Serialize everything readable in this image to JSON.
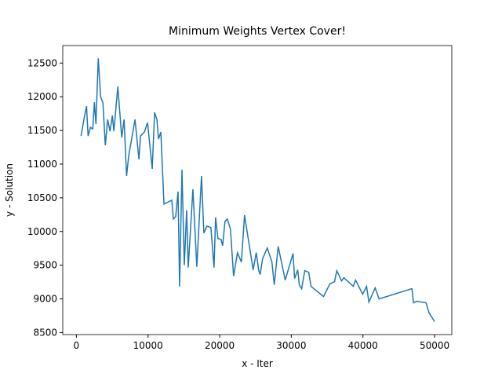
{
  "chart_data": {
    "type": "line",
    "title": "Minimum Weights Vertex Cover!",
    "x_label": "x - Iter",
    "y_label": "y - Solution",
    "x": [
      655,
      1092,
      1419,
      1638,
      1965,
      2293,
      2511,
      2729,
      3057,
      3384,
      3712,
      4039,
      4367,
      4694,
      5022,
      5240,
      5786,
      6332,
      6659,
      7007,
      7314,
      8187,
      8733,
      8952,
      9498,
      9934,
      10589,
      10917,
      11244,
      11463,
      11790,
      12227,
      13319,
      13537,
      13865,
      14192,
      14410,
      14738,
      15065,
      15393,
      15611,
      16266,
      16812,
      17467,
      17795,
      18232,
      18777,
      19214,
      19432,
      19760,
      20197,
      20415,
      20742,
      21070,
      21507,
      21943,
      22489,
      23035,
      23472,
      24673,
      25109,
      25437,
      25655,
      25983,
      26638,
      27293,
      27621,
      28167,
      29149,
      30241,
      30459,
      30896,
      31114,
      31442,
      31878,
      32424,
      32752,
      34499,
      35372,
      36027,
      36355,
      37010,
      37337,
      38647,
      38975,
      39957,
      40503,
      40831,
      41704,
      42250,
      46835,
      47054,
      47490,
      48800,
      49237,
      50000
    ],
    "series": [
      {
        "color": "#1f77b4",
        "values": [
          11418,
          11686,
          11860,
          11418,
          11546,
          11523,
          11919,
          11593,
          12570,
          12000,
          11907,
          11279,
          11663,
          11488,
          11721,
          11488,
          12151,
          11395,
          11663,
          10825,
          11128,
          11663,
          11070,
          11418,
          11477,
          11616,
          10930,
          11767,
          11663,
          11372,
          11477,
          10407,
          10465,
          10186,
          10221,
          10593,
          9186,
          10918,
          9500,
          10314,
          9465,
          10628,
          9476,
          10825,
          9977,
          10081,
          10058,
          9465,
          10209,
          9895,
          9884,
          9790,
          10151,
          10186,
          10035,
          9337,
          9686,
          9546,
          10244,
          9430,
          9686,
          9430,
          9360,
          9593,
          9756,
          9546,
          9209,
          9779,
          9279,
          9674,
          9302,
          9430,
          9209,
          9151,
          9418,
          9395,
          9186,
          9034,
          9221,
          9255,
          9418,
          9267,
          9314,
          9186,
          9279,
          9070,
          9186,
          8953,
          9163,
          9000,
          9151,
          8942,
          8965,
          8942,
          8790,
          8663
        ]
      }
    ],
    "xlim": [
      -1900,
      52400
    ],
    "ylim": [
      8470,
      12760
    ],
    "xticks": [
      0,
      10000,
      20000,
      30000,
      40000,
      50000
    ],
    "yticks": [
      8500,
      9000,
      9500,
      10000,
      10500,
      11000,
      11500,
      12000,
      12500
    ]
  }
}
